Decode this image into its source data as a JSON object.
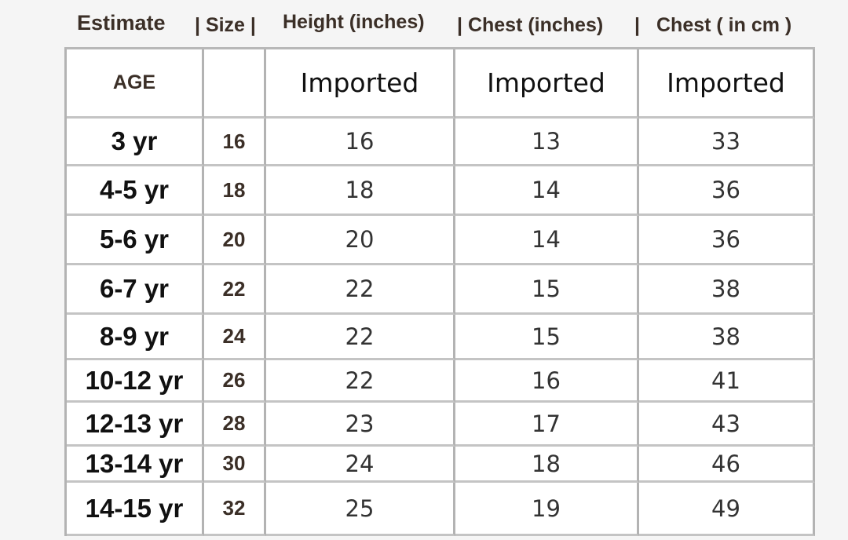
{
  "titles": [
    "Estimate",
    "| Size |",
    "Height (inches)",
    "| Chest (inches)",
    "|",
    "Chest ( in cm )"
  ],
  "header": {
    "age": "AGE",
    "size": "",
    "height": "Imported",
    "chest_in": "Imported",
    "chest_cm": "Imported"
  },
  "rows": [
    [
      "3 yr",
      "16",
      "16",
      "13",
      "33"
    ],
    [
      "4-5 yr",
      "18",
      "18",
      "14",
      "36"
    ],
    [
      "5-6 yr",
      "20",
      "20",
      "14",
      "36"
    ],
    [
      "6-7 yr",
      "22",
      "22",
      "15",
      "38"
    ],
    [
      "8-9 yr",
      "24",
      "22",
      "15",
      "38"
    ],
    [
      "10-12 yr",
      "26",
      "22",
      "16",
      "41"
    ],
    [
      "12-13 yr",
      "28",
      "23",
      "17",
      "43"
    ],
    [
      "13-14 yr",
      "30",
      "24",
      "18",
      "46"
    ],
    [
      "14-15 yr",
      "32",
      "25",
      "19",
      "49"
    ]
  ]
}
